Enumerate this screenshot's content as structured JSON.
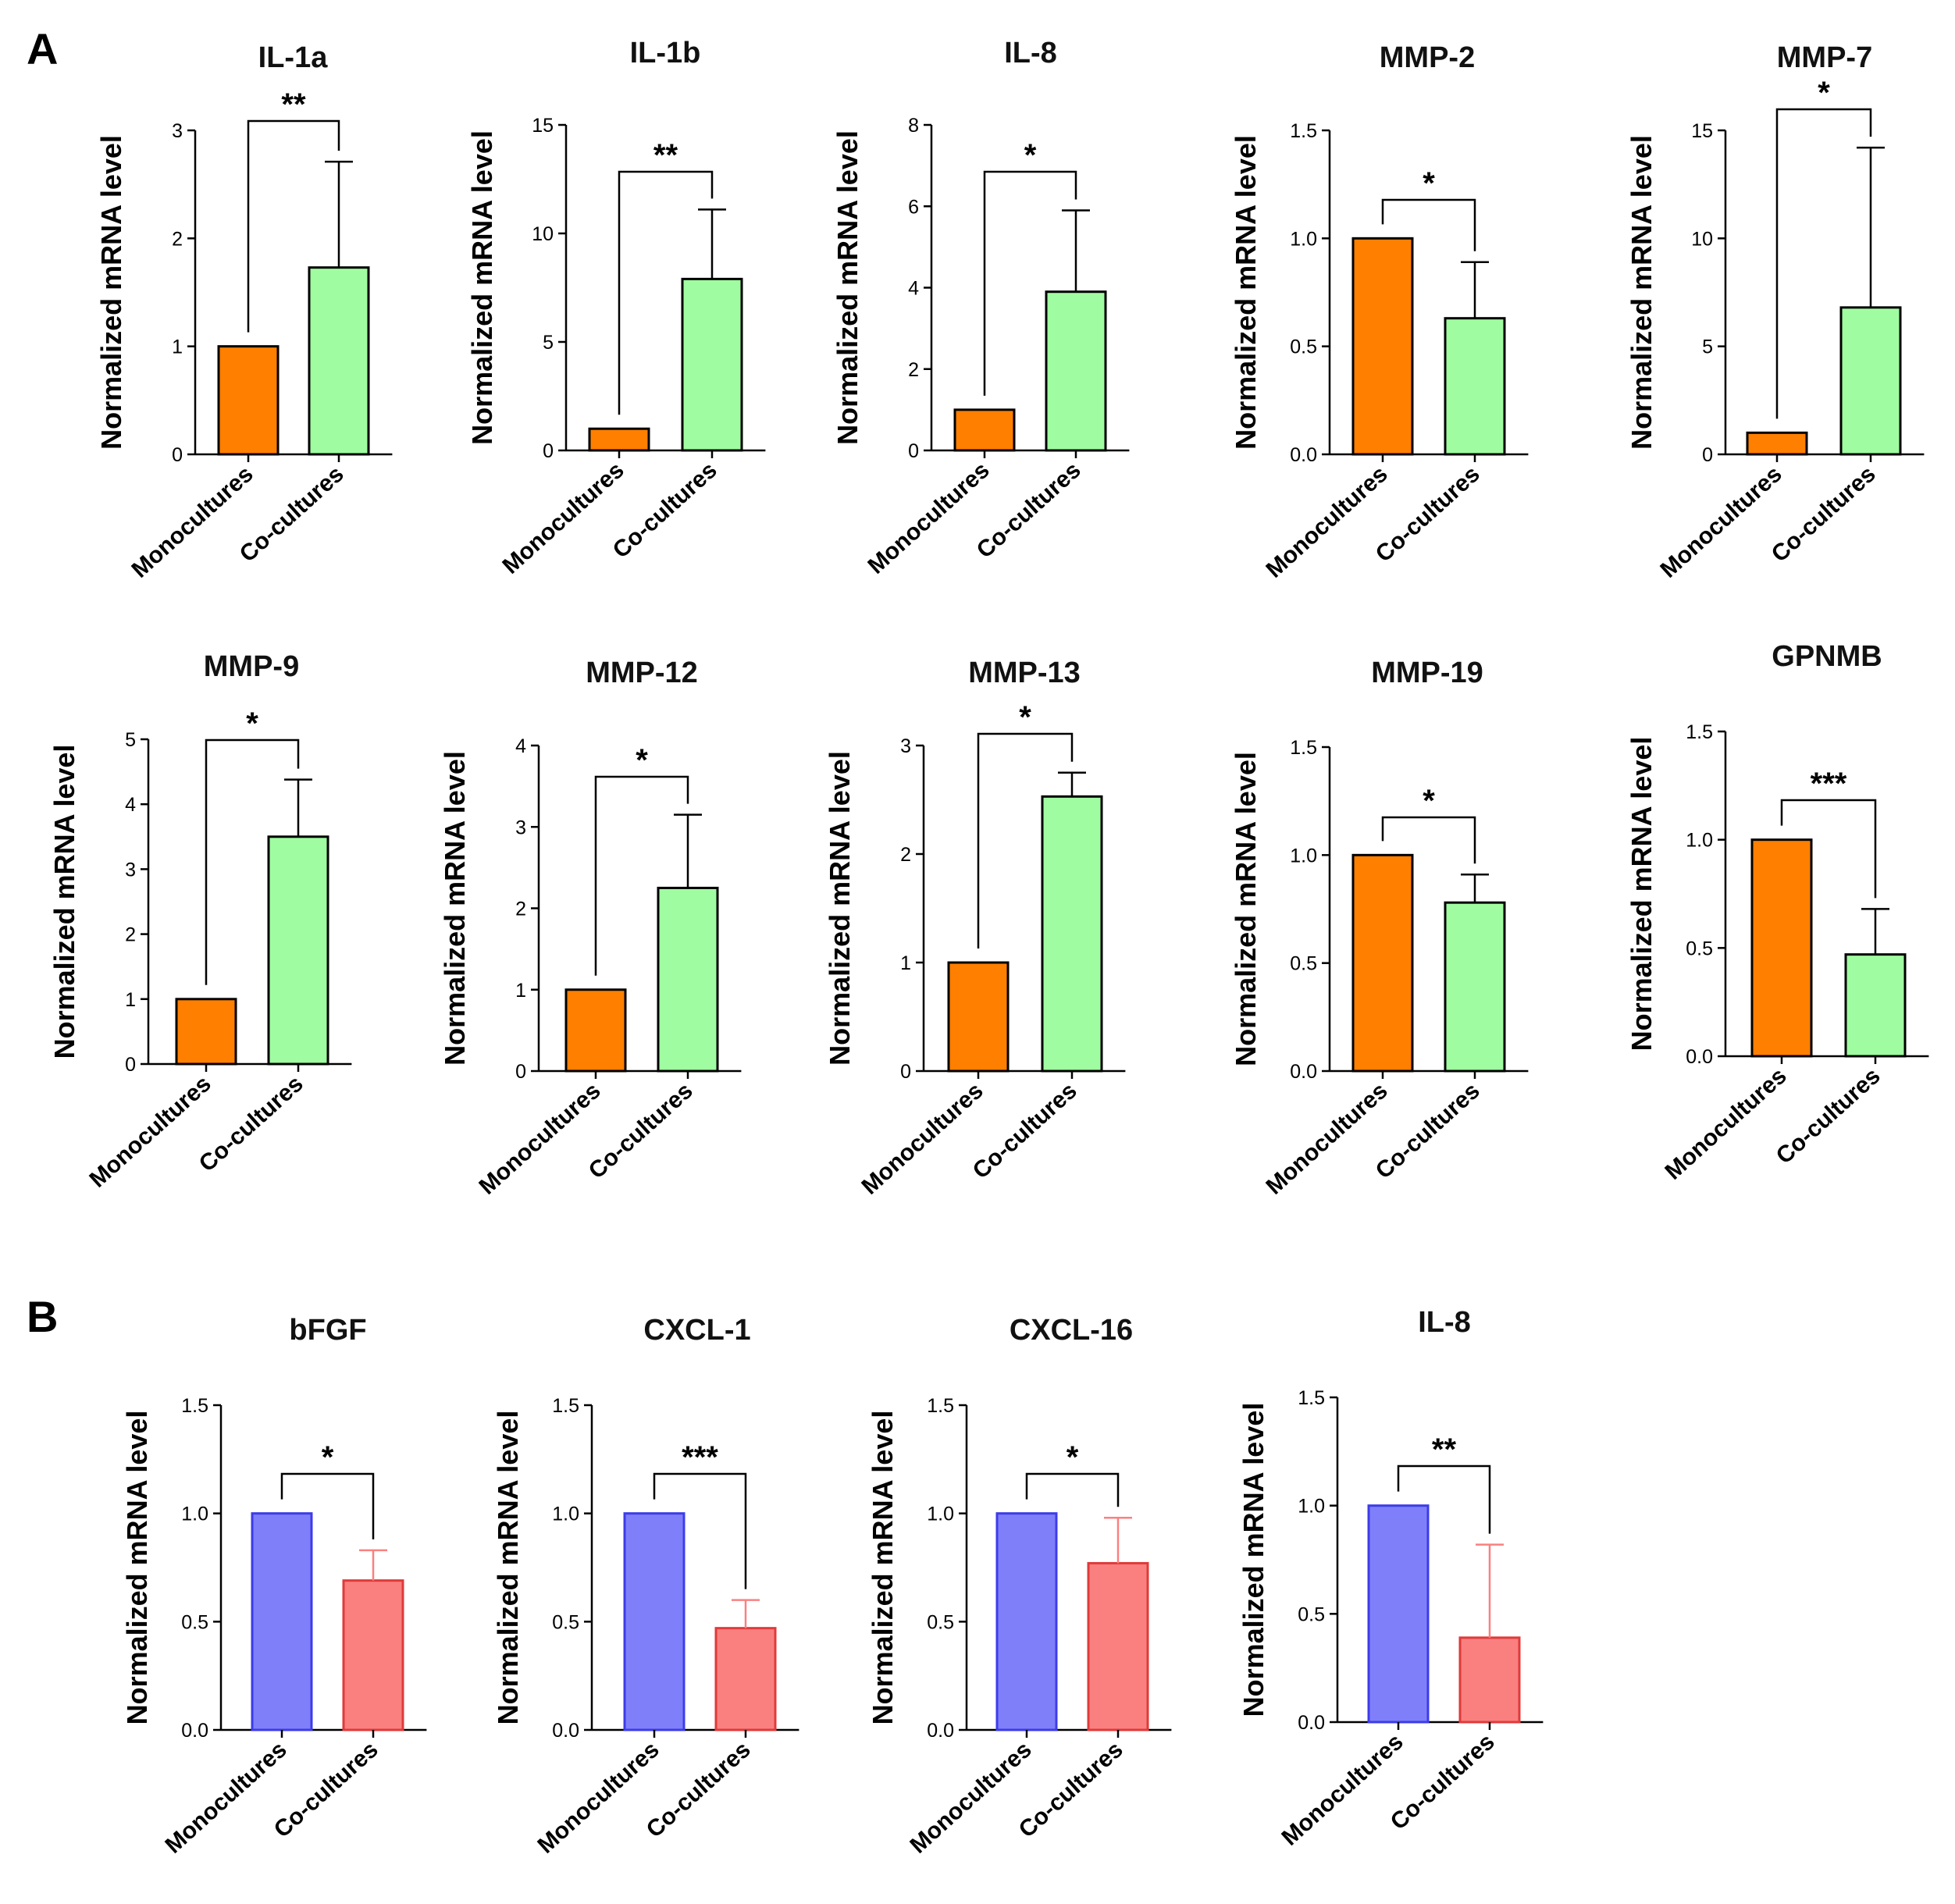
{
  "panels": [
    {
      "letter": "A"
    },
    {
      "letter": "B"
    }
  ],
  "colors": {
    "mono_a": "#ff7f00",
    "co_a": "#a0fca0",
    "mono_b": "#7f7ffa",
    "co_b": "#fa8080",
    "stroke_b_mono": "#3c3ce8",
    "stroke_b_co": "#e03a3a",
    "stroke": "#000000"
  },
  "chart_data": [
    {
      "type": "bar",
      "panel": "A",
      "title": "IL-1a",
      "ylabel": "Normalized mRNA level",
      "categories": [
        "Monocultures",
        "Co-cultures"
      ],
      "values": [
        1.0,
        1.73
      ],
      "errors": [
        0,
        0.98
      ],
      "ylim": [
        0,
        3
      ],
      "yticks": [
        "0",
        "1",
        "2",
        "3"
      ],
      "significance": "**"
    },
    {
      "type": "bar",
      "panel": "A",
      "title": "IL-1b",
      "ylabel": "Normalized mRNA level",
      "categories": [
        "Monocultures",
        "Co-cultures"
      ],
      "values": [
        1.0,
        7.9
      ],
      "errors": [
        0,
        3.2
      ],
      "ylim": [
        0,
        15
      ],
      "yticks": [
        "0",
        "5",
        "10",
        "15"
      ],
      "significance": "**"
    },
    {
      "type": "bar",
      "panel": "A",
      "title": "IL-8",
      "ylabel": "Normalized mRNA level",
      "categories": [
        "Monocultures",
        "Co-cultures"
      ],
      "values": [
        1.0,
        3.9
      ],
      "errors": [
        0,
        2.0
      ],
      "ylim": [
        0,
        8
      ],
      "yticks": [
        "0",
        "2",
        "4",
        "6",
        "8"
      ],
      "significance": "*"
    },
    {
      "type": "bar",
      "panel": "A",
      "title": "MMP-2",
      "ylabel": "Normalized mRNA level",
      "categories": [
        "Monocultures",
        "Co-cultures"
      ],
      "values": [
        1.0,
        0.63
      ],
      "errors": [
        0,
        0.26
      ],
      "ylim": [
        0,
        1.5
      ],
      "yticks": [
        "0.0",
        "0.5",
        "1.0",
        "1.5"
      ],
      "significance": "*"
    },
    {
      "type": "bar",
      "panel": "A",
      "title": "MMP-7",
      "ylabel": "Normalized mRNA level",
      "categories": [
        "Monocultures",
        "Co-cultures"
      ],
      "values": [
        1.0,
        6.8
      ],
      "errors": [
        0,
        7.4
      ],
      "ylim": [
        0,
        15
      ],
      "yticks": [
        "0",
        "5",
        "10",
        "15"
      ],
      "significance": "*"
    },
    {
      "type": "bar",
      "panel": "A",
      "title": "MMP-9",
      "ylabel": "Normalized mRNA level",
      "categories": [
        "Monocultures",
        "Co-cultures"
      ],
      "values": [
        1.0,
        3.5
      ],
      "errors": [
        0,
        0.88
      ],
      "ylim": [
        0,
        5
      ],
      "yticks": [
        "0",
        "1",
        "2",
        "3",
        "4",
        "5"
      ],
      "significance": "*"
    },
    {
      "type": "bar",
      "panel": "A",
      "title": "MMP-12",
      "ylabel": "Normalized mRNA level",
      "categories": [
        "Monocultures",
        "Co-cultures"
      ],
      "values": [
        1.0,
        2.25
      ],
      "errors": [
        0,
        0.9
      ],
      "ylim": [
        0,
        4
      ],
      "yticks": [
        "0",
        "1",
        "2",
        "3",
        "4"
      ],
      "significance": "*"
    },
    {
      "type": "bar",
      "panel": "A",
      "title": "MMP-13",
      "ylabel": "Normalized mRNA level",
      "categories": [
        "Monocultures",
        "Co-cultures"
      ],
      "values": [
        1.0,
        2.53
      ],
      "errors": [
        0,
        0.22
      ],
      "ylim": [
        0,
        3
      ],
      "yticks": [
        "0",
        "1",
        "2",
        "3"
      ],
      "significance": "*"
    },
    {
      "type": "bar",
      "panel": "A",
      "title": "MMP-19",
      "ylabel": "Normalized mRNA level",
      "categories": [
        "Monocultures",
        "Co-cultures"
      ],
      "values": [
        1.0,
        0.78
      ],
      "errors": [
        0,
        0.13
      ],
      "ylim": [
        0,
        1.5
      ],
      "yticks": [
        "0.0",
        "0.5",
        "1.0",
        "1.5"
      ],
      "significance": "*"
    },
    {
      "type": "bar",
      "panel": "A",
      "title": "GPNMB",
      "ylabel": "Normalized mRNA level",
      "categories": [
        "Monocultures",
        "Co-cultures"
      ],
      "values": [
        1.0,
        0.47
      ],
      "errors": [
        0,
        0.21
      ],
      "ylim": [
        0,
        1.5
      ],
      "yticks": [
        "0.0",
        "0.5",
        "1.0",
        "1.5"
      ],
      "significance": "***"
    },
    {
      "type": "bar",
      "panel": "B",
      "title": "bFGF",
      "ylabel": "Normalized mRNA level",
      "categories": [
        "Monocultures",
        "Co-cultures"
      ],
      "values": [
        1.0,
        0.69
      ],
      "errors": [
        0,
        0.14
      ],
      "ylim": [
        0,
        1.5
      ],
      "yticks": [
        "0.0",
        "0.5",
        "1.0",
        "1.5"
      ],
      "significance": "*"
    },
    {
      "type": "bar",
      "panel": "B",
      "title": "CXCL-1",
      "ylabel": "Normalized mRNA level",
      "categories": [
        "Monocultures",
        "Co-cultures"
      ],
      "values": [
        1.0,
        0.47
      ],
      "errors": [
        0,
        0.13
      ],
      "ylim": [
        0,
        1.5
      ],
      "yticks": [
        "0.0",
        "0.5",
        "1.0",
        "1.5"
      ],
      "significance": "***"
    },
    {
      "type": "bar",
      "panel": "B",
      "title": "CXCL-16",
      "ylabel": "Normalized mRNA level",
      "categories": [
        "Monocultures",
        "Co-cultures"
      ],
      "values": [
        1.0,
        0.77
      ],
      "errors": [
        0,
        0.21
      ],
      "ylim": [
        0,
        1.5
      ],
      "yticks": [
        "0.0",
        "0.5",
        "1.0",
        "1.5"
      ],
      "significance": "*"
    },
    {
      "type": "bar",
      "panel": "B",
      "title": "IL-8",
      "ylabel": "Normalized mRNA level",
      "categories": [
        "Monocultures",
        "Co-cultures"
      ],
      "values": [
        1.0,
        0.39
      ],
      "errors": [
        0,
        0.43
      ],
      "ylim": [
        0,
        1.5
      ],
      "yticks": [
        "0.0",
        "0.5",
        "1.0",
        "1.5"
      ],
      "significance": "**"
    }
  ]
}
